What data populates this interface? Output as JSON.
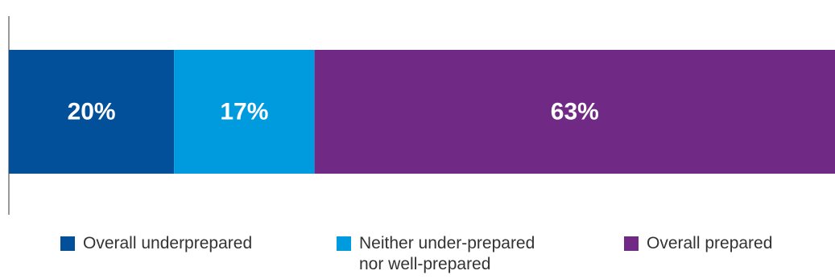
{
  "chart_data": {
    "type": "bar",
    "orientation": "horizontal-stacked",
    "unit": "%",
    "series": [
      {
        "name": "Overall underprepared",
        "value": 20,
        "label": "20%",
        "color": "#03509A"
      },
      {
        "name": "Neither under-prepared\nnor well-prepared",
        "value": 17,
        "label": "17%",
        "color": "#009ADE"
      },
      {
        "name": "Overall prepared",
        "value": 63,
        "label": "63%",
        "color": "#702A86"
      }
    ],
    "xlim": [
      0,
      100
    ],
    "legend_position": "bottom"
  }
}
